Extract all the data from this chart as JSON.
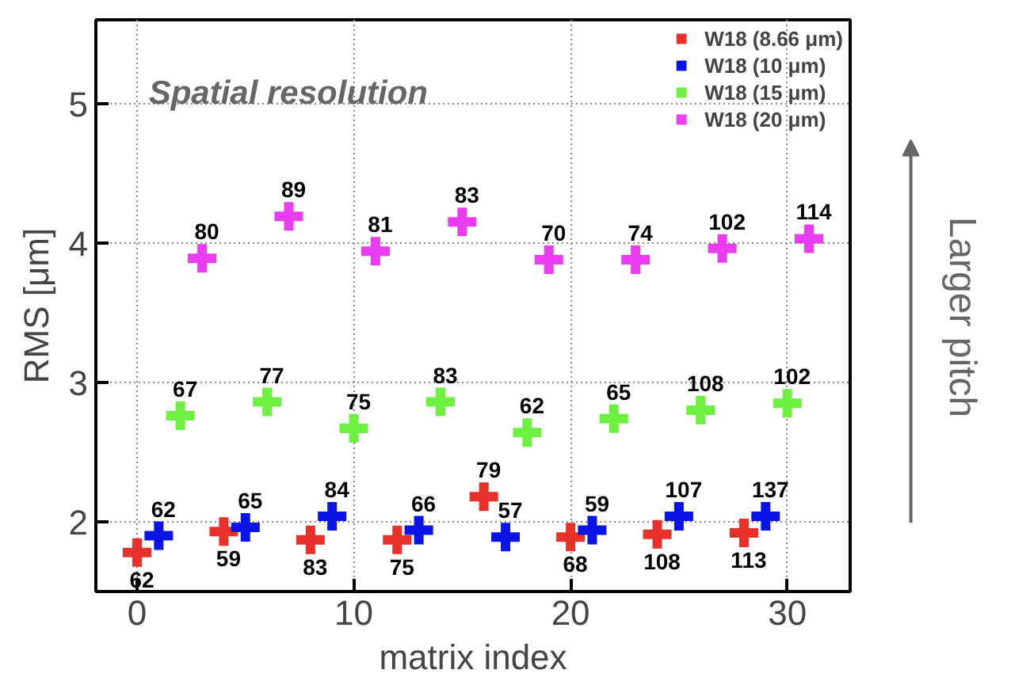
{
  "chart_data": {
    "type": "scatter",
    "xlabel": "matrix index",
    "ylabel": "RMS [μm]",
    "xlim": [
      -1.9,
      32.9
    ],
    "ylim": [
      1.5,
      5.6
    ],
    "xticks": [
      0,
      10,
      20,
      30
    ],
    "yticks": [
      2,
      3,
      4,
      5
    ],
    "grid": true,
    "legend": "top right",
    "marker": "cross",
    "annotations": [
      "Spatial resolution",
      "Larger pitch",
      {
        "text": "62",
        "x": 0,
        "y": 1.78
      },
      {
        "text": "59",
        "x": 4,
        "y": 1.93
      },
      {
        "text": "83",
        "x": 8,
        "y": 1.87
      },
      {
        "text": "75",
        "x": 12,
        "y": 1.87
      },
      {
        "text": "79",
        "x": 16,
        "y": 2.18
      },
      {
        "text": "68",
        "x": 20,
        "y": 1.89
      },
      {
        "text": "108",
        "x": 24,
        "y": 1.91
      },
      {
        "text": "113",
        "x": 28,
        "y": 1.92
      },
      {
        "text": "62",
        "x": 1,
        "y": 1.9
      },
      {
        "text": "65",
        "x": 5,
        "y": 1.96
      },
      {
        "text": "84",
        "x": 9,
        "y": 2.04
      },
      {
        "text": "66",
        "x": 13,
        "y": 1.94
      },
      {
        "text": "57",
        "x": 17,
        "y": 1.89
      },
      {
        "text": "59",
        "x": 21,
        "y": 1.94
      },
      {
        "text": "107",
        "x": 25,
        "y": 2.04
      },
      {
        "text": "137",
        "x": 29,
        "y": 2.04
      },
      {
        "text": "67",
        "x": 2,
        "y": 2.76
      },
      {
        "text": "77",
        "x": 6,
        "y": 2.86
      },
      {
        "text": "75",
        "x": 10,
        "y": 2.67
      },
      {
        "text": "83",
        "x": 14,
        "y": 2.86
      },
      {
        "text": "62",
        "x": 18,
        "y": 2.64
      },
      {
        "text": "65",
        "x": 22,
        "y": 2.74
      },
      {
        "text": "108",
        "x": 26,
        "y": 2.8
      },
      {
        "text": "102",
        "x": 30,
        "y": 2.85
      },
      {
        "text": "80",
        "x": 3,
        "y": 3.89
      },
      {
        "text": "89",
        "x": 7,
        "y": 4.19
      },
      {
        "text": "81",
        "x": 11,
        "y": 3.94
      },
      {
        "text": "83",
        "x": 15,
        "y": 4.15
      },
      {
        "text": "70",
        "x": 19,
        "y": 3.88
      },
      {
        "text": "74",
        "x": 23,
        "y": 3.88
      },
      {
        "text": "102",
        "x": 27,
        "y": 3.96
      },
      {
        "text": "114",
        "x": 31,
        "y": 4.03
      }
    ],
    "series": [
      {
        "name": "W18 (8.66 μm)",
        "color": "#e8312a",
        "x": [
          0,
          4,
          8,
          12,
          16,
          20,
          24,
          28
        ],
        "values": [
          1.78,
          1.93,
          1.87,
          1.87,
          2.18,
          1.89,
          1.91,
          1.92
        ]
      },
      {
        "name": "W18 (10 μm)",
        "color": "#0a14e6",
        "x": [
          1,
          5,
          9,
          13,
          17,
          21,
          25,
          29
        ],
        "values": [
          1.9,
          1.96,
          2.04,
          1.94,
          1.89,
          1.94,
          2.04,
          2.04
        ]
      },
      {
        "name": "W18 (15 μm)",
        "color": "#6ef040",
        "x": [
          2,
          6,
          10,
          14,
          18,
          22,
          26,
          30
        ],
        "values": [
          2.76,
          2.86,
          2.67,
          2.86,
          2.64,
          2.74,
          2.8,
          2.85
        ]
      },
      {
        "name": "W18 (20 μm)",
        "color": "#ea3cf0",
        "x": [
          3,
          7,
          11,
          15,
          19,
          23,
          27,
          31
        ],
        "values": [
          3.89,
          4.19,
          3.94,
          4.15,
          3.88,
          3.88,
          3.96,
          4.03
        ]
      }
    ]
  }
}
